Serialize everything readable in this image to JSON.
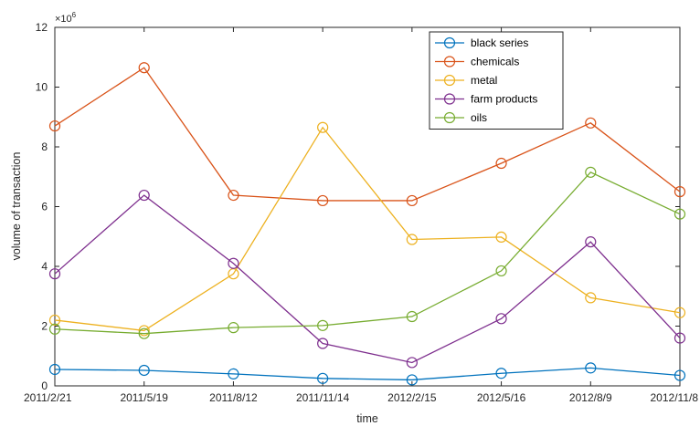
{
  "chart_data": {
    "type": "line",
    "xlabel": "time",
    "ylabel": "volume of transaction",
    "y_exponent_label": "×10",
    "y_exponent_power": "6",
    "ylim": [
      0,
      12
    ],
    "yticks": [
      "0",
      "2",
      "4",
      "6",
      "8",
      "10",
      "12"
    ],
    "yticks_values": [
      0,
      2,
      4,
      6,
      8,
      10,
      12
    ],
    "categories": [
      "2011/2/21",
      "2011/5/19",
      "2011/8/12",
      "2011/11/14",
      "2012/2/15",
      "2012/5/16",
      "2012/8/9",
      "2012/11/8"
    ],
    "grid": false,
    "legend_position": "top-right",
    "marker": "circle",
    "series": [
      {
        "name": "black series",
        "color": "#0072BD",
        "values": [
          0.55,
          0.52,
          0.4,
          0.25,
          0.2,
          0.42,
          0.6,
          0.35
        ]
      },
      {
        "name": "chemicals",
        "color": "#D95319",
        "values": [
          8.7,
          10.65,
          6.38,
          6.2,
          6.2,
          7.45,
          8.8,
          6.5
        ]
      },
      {
        "name": "metal",
        "color": "#EDB120",
        "values": [
          2.2,
          1.85,
          3.75,
          8.65,
          4.9,
          4.98,
          2.95,
          2.45
        ]
      },
      {
        "name": "farm products",
        "color": "#7E2F8E",
        "values": [
          3.75,
          6.38,
          4.1,
          1.42,
          0.78,
          2.25,
          4.82,
          1.6
        ]
      },
      {
        "name": "oils",
        "color": "#77AC30",
        "values": [
          1.9,
          1.75,
          1.95,
          2.02,
          2.32,
          3.85,
          7.15,
          5.75
        ]
      }
    ]
  }
}
